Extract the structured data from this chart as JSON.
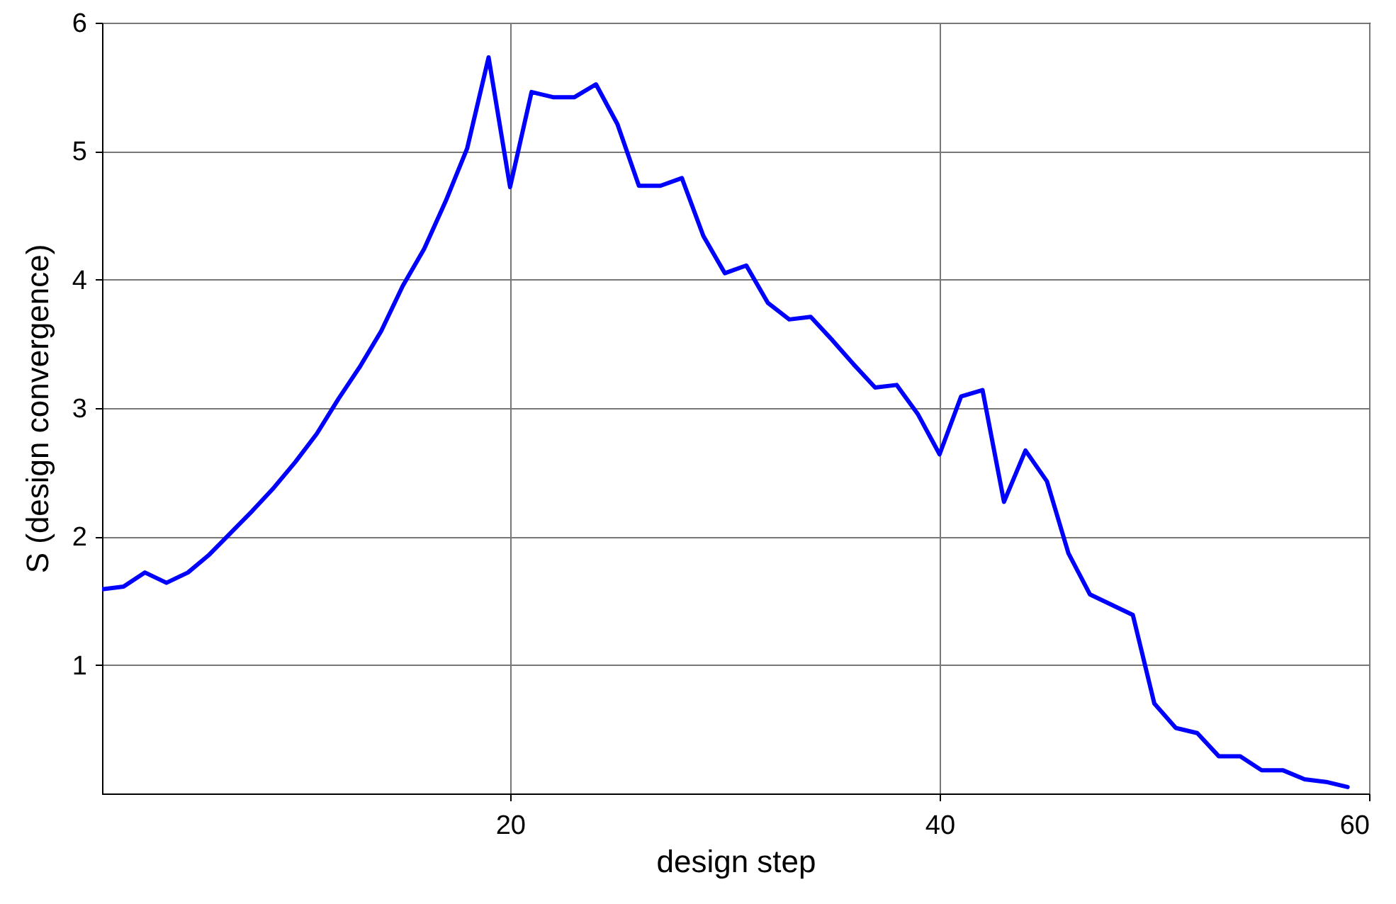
{
  "chart_data": {
    "type": "line",
    "xlabel": "design step",
    "ylabel": "S (design convergence)",
    "x": [
      1,
      2,
      3,
      4,
      5,
      6,
      7,
      8,
      9,
      10,
      11,
      12,
      13,
      14,
      15,
      16,
      17,
      18,
      19,
      20,
      21,
      22,
      23,
      24,
      25,
      26,
      27,
      28,
      29,
      30,
      31,
      32,
      33,
      34,
      35,
      36,
      37,
      38,
      39,
      40,
      41,
      42,
      43,
      44,
      45,
      46,
      47,
      48,
      49,
      50,
      51,
      52,
      53,
      54,
      55,
      56,
      57,
      58,
      59
    ],
    "series": [
      {
        "color": "#0000ff",
        "values": [
          1.59,
          1.61,
          1.72,
          1.64,
          1.72,
          1.86,
          2.03,
          2.2,
          2.38,
          2.58,
          2.8,
          3.07,
          3.32,
          3.6,
          3.95,
          4.24,
          4.61,
          5.02,
          5.73,
          4.72,
          5.46,
          5.42,
          5.42,
          5.52,
          5.21,
          4.73,
          4.73,
          4.79,
          4.34,
          4.05,
          4.11,
          3.82,
          3.69,
          3.71,
          3.53,
          3.34,
          3.16,
          3.18,
          2.95,
          2.64,
          3.09,
          3.14,
          2.27,
          2.67,
          2.43,
          1.87,
          1.55,
          1.47,
          1.39,
          0.7,
          0.51,
          0.47,
          0.29,
          0.29,
          0.18,
          0.18,
          0.11,
          0.09,
          0.05
        ]
      }
    ],
    "xlim": [
      1,
      60
    ],
    "xticks": [
      20,
      40,
      60
    ],
    "ylim": [
      0,
      6
    ],
    "yticks": [
      1,
      2,
      3,
      4,
      5,
      6
    ],
    "grid": true,
    "marker": "none",
    "line_style": "solid"
  }
}
